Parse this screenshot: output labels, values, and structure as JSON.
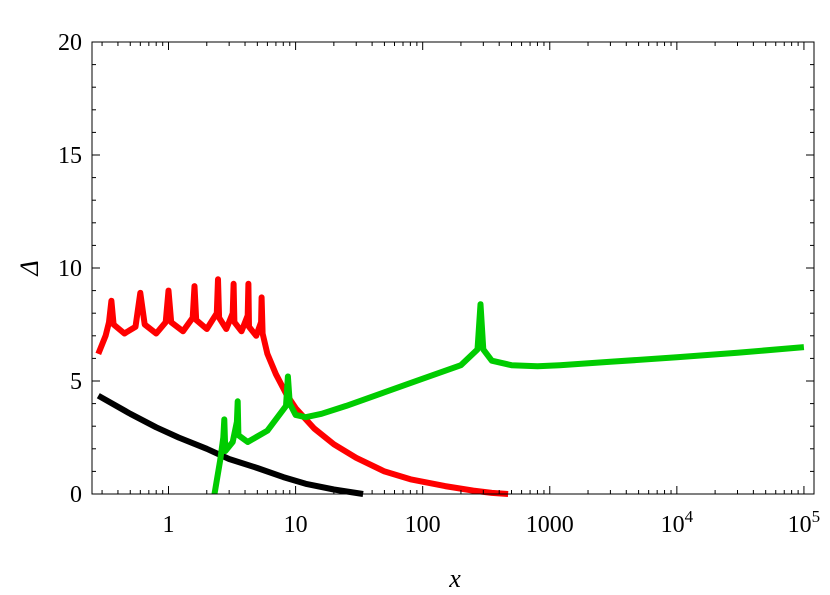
{
  "chart_data": {
    "type": "line",
    "title": "",
    "xlabel": "x",
    "ylabel": "Δ",
    "xscale": "log",
    "xlim": [
      0.25,
      120000
    ],
    "ylim": [
      0,
      20
    ],
    "grid": false,
    "legend": "none",
    "y_ticks": [
      0,
      5,
      10,
      15,
      20
    ],
    "y_tick_labels": [
      "0",
      "5",
      "10",
      "15",
      "20"
    ],
    "x_ticks": [
      {
        "value": 1,
        "base": "1",
        "exp": ""
      },
      {
        "value": 10,
        "base": "10",
        "exp": ""
      },
      {
        "value": 100,
        "base": "100",
        "exp": ""
      },
      {
        "value": 1000,
        "base": "1000",
        "exp": ""
      },
      {
        "value": 10000,
        "base": "10",
        "exp": "4"
      },
      {
        "value": 100000,
        "base": "10",
        "exp": "5"
      }
    ],
    "series": [
      {
        "color": "#000000",
        "x": [
          0.28,
          0.5,
          0.8,
          1.2,
          2,
          3,
          5,
          8,
          12,
          20,
          34
        ],
        "y": [
          4.35,
          3.55,
          2.95,
          2.5,
          2.0,
          1.55,
          1.15,
          0.75,
          0.45,
          0.2,
          0
        ]
      },
      {
        "color": "#ff0000",
        "x": [
          0.28,
          0.32,
          0.34,
          0.355,
          0.37,
          0.45,
          0.55,
          0.6,
          0.65,
          0.8,
          0.95,
          1.0,
          1.05,
          1.3,
          1.55,
          1.6,
          1.65,
          2.0,
          2.4,
          2.45,
          2.5,
          2.85,
          3.2,
          3.25,
          3.3,
          3.75,
          4.2,
          4.25,
          4.3,
          4.9,
          5.35,
          5.4,
          5.5,
          6,
          7,
          8.5,
          10,
          14,
          20,
          30,
          50,
          80,
          150,
          250,
          350,
          470
        ],
        "y": [
          6.2,
          7.0,
          7.6,
          8.55,
          7.5,
          7.1,
          7.4,
          8.9,
          7.5,
          7.1,
          7.6,
          9.0,
          7.6,
          7.2,
          7.8,
          9.2,
          7.7,
          7.3,
          8.0,
          9.5,
          7.8,
          7.3,
          8.0,
          9.3,
          7.6,
          7.2,
          7.9,
          9.3,
          7.4,
          7.0,
          7.6,
          8.7,
          7.1,
          6.2,
          5.3,
          4.4,
          3.8,
          2.9,
          2.2,
          1.6,
          1.0,
          0.65,
          0.35,
          0.15,
          0.05,
          0
        ]
      },
      {
        "color": "#00cc00",
        "x": [
          2.3,
          2.55,
          2.7,
          2.75,
          2.8,
          3.2,
          3.45,
          3.5,
          3.55,
          4.2,
          6,
          8.4,
          8.7,
          9.0,
          10,
          12,
          16,
          25,
          50,
          100,
          200,
          270,
          285,
          300,
          350,
          500,
          800,
          1200,
          3000,
          10000,
          30000,
          100000
        ],
        "y": [
          0,
          1.5,
          2.5,
          3.3,
          1.9,
          2.3,
          3.2,
          4.1,
          2.6,
          2.3,
          2.8,
          3.9,
          5.2,
          4.0,
          3.5,
          3.4,
          3.55,
          3.9,
          4.5,
          5.1,
          5.7,
          6.4,
          8.4,
          6.4,
          5.9,
          5.7,
          5.65,
          5.7,
          5.85,
          6.05,
          6.25,
          6.5
        ]
      }
    ]
  }
}
